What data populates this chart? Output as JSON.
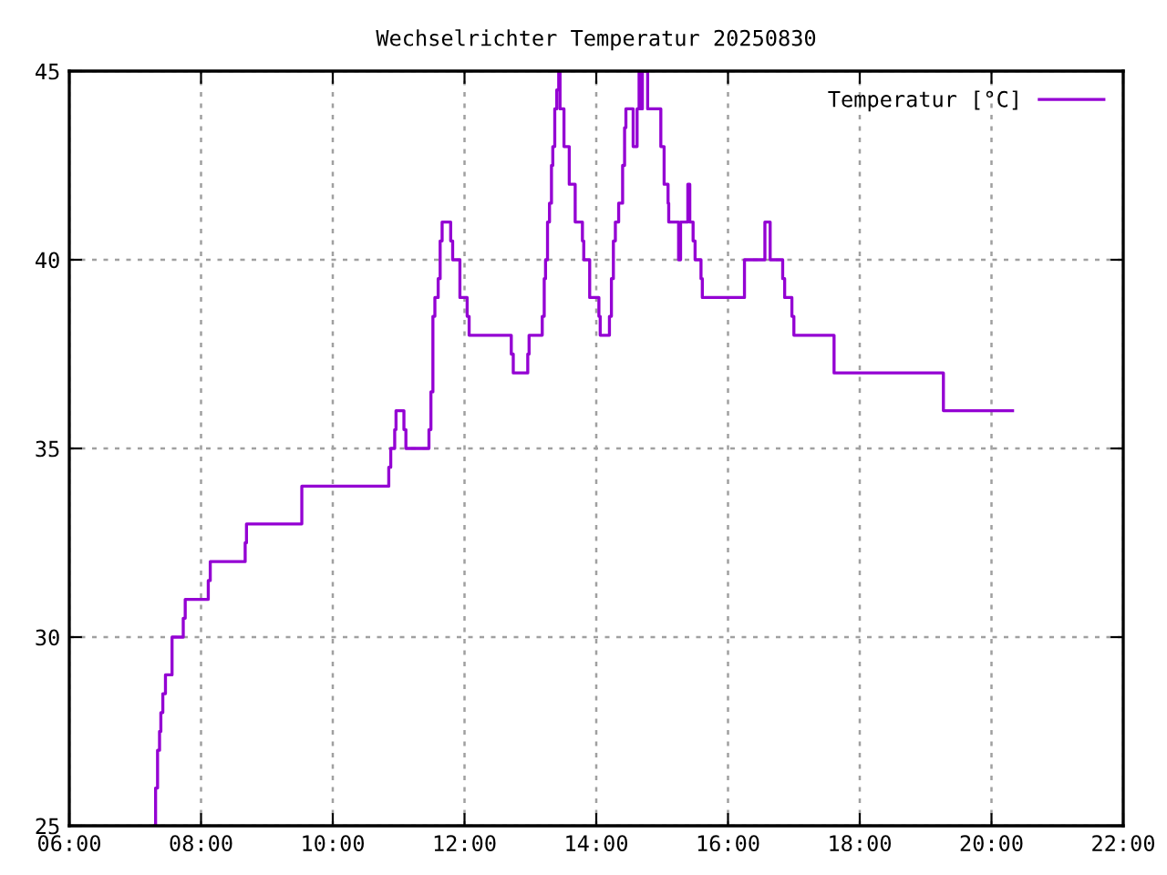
{
  "chart_data": {
    "type": "step",
    "title": "Wechselrichter Temperatur 20250830",
    "x": [
      7.3,
      7.31,
      7.34,
      7.37,
      7.39,
      7.42,
      7.46,
      7.56,
      7.73,
      7.76,
      8.11,
      8.14,
      8.67,
      8.69,
      9.53,
      10.85,
      10.88,
      10.94,
      10.96,
      11.08,
      11.11,
      11.46,
      11.49,
      11.52,
      11.55,
      11.6,
      11.63,
      11.66,
      11.79,
      11.82,
      11.93,
      12.04,
      12.07,
      12.71,
      12.74,
      12.96,
      12.98,
      13.18,
      13.21,
      13.23,
      13.26,
      13.29,
      13.32,
      13.34,
      13.37,
      13.4,
      13.43,
      13.45,
      13.51,
      13.59,
      13.68,
      13.79,
      13.81,
      13.9,
      14.04,
      14.06,
      14.2,
      14.23,
      14.26,
      14.29,
      14.34,
      14.4,
      14.43,
      14.45,
      14.56,
      14.62,
      14.65,
      14.68,
      14.7,
      14.78,
      14.98,
      15.03,
      15.09,
      15.1,
      15.25,
      15.28,
      15.39,
      15.42,
      15.47,
      15.5,
      15.59,
      15.61,
      16.25,
      16.56,
      16.64,
      16.83,
      16.86,
      16.97,
      17.0,
      17.61,
      19.27,
      20.32
    ],
    "series": [
      {
        "name": "Temperatur [°C]",
        "color": "#9400d3",
        "values": [
          25,
          26,
          27,
          27.5,
          28,
          28.5,
          29,
          30,
          30.5,
          31,
          31.5,
          32,
          32.5,
          33,
          34,
          34.5,
          35,
          35.5,
          36,
          35.5,
          35,
          35.5,
          36.5,
          38.5,
          39,
          39.5,
          40.5,
          41,
          40.5,
          40,
          39,
          38.5,
          38,
          37.5,
          37,
          37.5,
          38,
          38.5,
          39.5,
          40,
          41,
          41.5,
          42.5,
          43,
          44,
          44.5,
          45,
          44,
          43,
          42,
          41,
          40.5,
          40,
          39,
          38.5,
          38,
          38.5,
          39.5,
          40.5,
          41,
          41.5,
          42.5,
          43.5,
          44,
          43,
          44,
          45,
          44,
          45,
          44,
          43,
          42,
          41.5,
          41,
          40,
          41,
          42,
          41,
          40.5,
          40,
          39.5,
          39,
          40,
          41,
          40,
          39.5,
          39,
          38.5,
          38,
          37,
          36,
          36
        ]
      }
    ],
    "xlim": [
      6,
      22
    ],
    "xticks": [
      {
        "value": 6,
        "label": "06:00"
      },
      {
        "value": 8,
        "label": "08:00"
      },
      {
        "value": 10,
        "label": "10:00"
      },
      {
        "value": 12,
        "label": "12:00"
      },
      {
        "value": 14,
        "label": "14:00"
      },
      {
        "value": 16,
        "label": "16:00"
      },
      {
        "value": 18,
        "label": "18:00"
      },
      {
        "value": 20,
        "label": "20:00"
      },
      {
        "value": 22,
        "label": "22:00"
      }
    ],
    "ylim": [
      25,
      45
    ],
    "yticks": [
      25,
      30,
      35,
      40,
      45
    ],
    "grid": true,
    "legend": "top right",
    "line_style": "solid"
  }
}
